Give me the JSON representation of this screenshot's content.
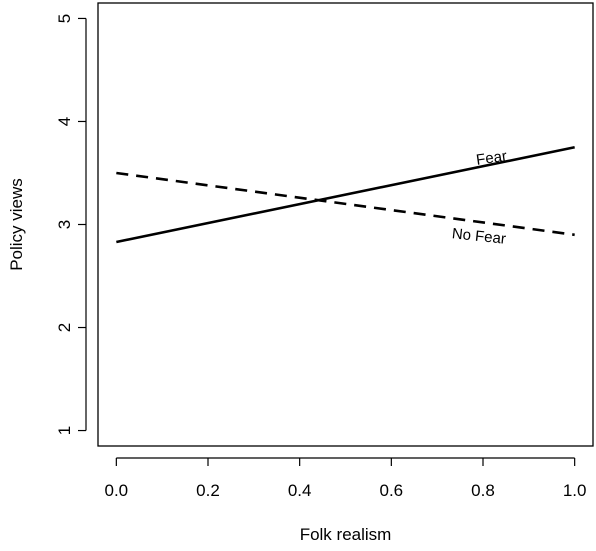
{
  "chart_data": {
    "type": "line",
    "title": "",
    "xlabel": "Folk realism",
    "ylabel": "Policy views",
    "xlim": [
      -0.04,
      1.04
    ],
    "ylim": [
      0.85,
      5.15
    ],
    "x_ticks": [
      0.0,
      0.2,
      0.4,
      0.6,
      0.8,
      1.0
    ],
    "x_tick_labels": [
      "0.0",
      "0.2",
      "0.4",
      "0.6",
      "0.8",
      "1.0"
    ],
    "y_ticks": [
      1,
      2,
      3,
      4,
      5
    ],
    "y_tick_labels": [
      "1",
      "2",
      "3",
      "4",
      "5"
    ],
    "grid": false,
    "legend": "none",
    "series": [
      {
        "name": "Fear",
        "line_style": "solid",
        "color": "#000000",
        "x": [
          0.0,
          1.0
        ],
        "y": [
          2.83,
          3.75
        ],
        "label_at": {
          "x": 0.82,
          "y": 3.6
        },
        "label_angle": -8
      },
      {
        "name": "No Fear",
        "line_style": "dashed",
        "color": "#000000",
        "x": [
          0.0,
          1.0
        ],
        "y": [
          3.5,
          2.9
        ],
        "label_at": {
          "x": 0.79,
          "y": 2.84
        },
        "label_angle": 6
      }
    ]
  }
}
